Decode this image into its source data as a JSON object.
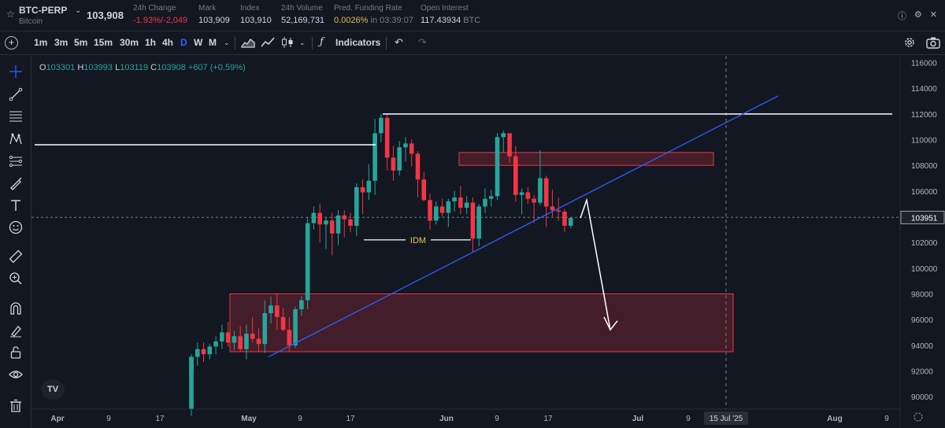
{
  "header": {
    "symbol": "BTC-PERP",
    "subtitle": "Bitcoin",
    "last_price": "103,908",
    "stats": [
      {
        "label": "24h Change",
        "value": "-1.93%/-2,049",
        "tone": "red"
      },
      {
        "label": "Mark",
        "value": "103,909",
        "tone": "normal"
      },
      {
        "label": "Index",
        "value": "103,910",
        "tone": "normal"
      },
      {
        "label": "24h Volume",
        "value": "52,169,731",
        "tone": "normal"
      },
      {
        "label": "Pred. Funding Rate",
        "value": "0.0026%",
        "value_suffix": "in 03:39:07",
        "tone": "yellow"
      },
      {
        "label": "Open Interest",
        "value": "117.43934",
        "value_suffix": "BTC",
        "tone": "normal"
      }
    ]
  },
  "toolbar": {
    "timeframes": [
      "1m",
      "3m",
      "5m",
      "15m",
      "30m",
      "1h",
      "4h",
      "D",
      "W",
      "M"
    ],
    "active_timeframe": "D",
    "indicators_label": "Indicators"
  },
  "legend": {
    "open_label": "O",
    "open": "103301",
    "high_label": "H",
    "high": "103993",
    "low_label": "L",
    "low": "103119",
    "close_label": "C",
    "close": "103908",
    "change": "+607 (+0.59%)"
  },
  "chart_data": {
    "type": "candlestick",
    "y_axis_ticks": [
      116000,
      114000,
      112000,
      110000,
      108000,
      106000,
      104000,
      102000,
      100000,
      98000,
      96000,
      94000,
      92000,
      90000
    ],
    "ylim": [
      88500,
      116800
    ],
    "x_axis_labels": [
      "Apr",
      "9",
      "17",
      "May",
      "9",
      "17",
      "Jun",
      "9",
      "17",
      "Jul",
      "9",
      "15 Jul '25",
      "Aug",
      "9"
    ],
    "current_price_label": "103951",
    "annotations": {
      "idm_label": "IDM"
    },
    "colors": {
      "up": "#26a69a",
      "down": "#f23645",
      "trendline": "#2962ff",
      "zone": "#f23645"
    },
    "candles": [
      [
        91800,
        93300,
        88500,
        93100
      ],
      [
        93100,
        94200,
        92400,
        93700
      ],
      [
        93700,
        94200,
        92700,
        93300
      ],
      [
        93300,
        94100,
        92900,
        93900
      ],
      [
        93900,
        94700,
        93300,
        94300
      ],
      [
        94300,
        95600,
        93700,
        95000
      ],
      [
        95000,
        95800,
        93900,
        94200
      ],
      [
        94200,
        95100,
        93600,
        94700
      ],
      [
        94700,
        95500,
        93500,
        93700
      ],
      [
        93700,
        95600,
        92900,
        94900
      ],
      [
        94900,
        96200,
        94200,
        94500
      ],
      [
        94500,
        95300,
        93500,
        94100
      ],
      [
        94100,
        97500,
        93400,
        96500
      ],
      [
        96500,
        97800,
        95700,
        97100
      ],
      [
        97100,
        98000,
        95200,
        96200
      ],
      [
        96200,
        96900,
        95100,
        95200
      ],
      [
        95200,
        96200,
        93500,
        94000
      ],
      [
        94000,
        97000,
        93800,
        96800
      ],
      [
        96800,
        97800,
        96300,
        97500
      ],
      [
        97500,
        104000,
        96800,
        103500
      ],
      [
        103500,
        104800,
        103000,
        104300
      ],
      [
        104300,
        105000,
        102000,
        103400
      ],
      [
        103400,
        104000,
        101500,
        103700
      ],
      [
        103700,
        104300,
        101000,
        102700
      ],
      [
        102700,
        104500,
        101800,
        104100
      ],
      [
        104100,
        104500,
        102400,
        103800
      ],
      [
        103800,
        104300,
        102800,
        103300
      ],
      [
        103300,
        106600,
        102500,
        106300
      ],
      [
        106300,
        106900,
        104200,
        105900
      ],
      [
        105900,
        108100,
        105300,
        106800
      ],
      [
        106800,
        111600,
        105700,
        110500
      ],
      [
        110500,
        112000,
        109800,
        111700
      ],
      [
        111700,
        112000,
        107600,
        108600
      ],
      [
        108600,
        109500,
        106800,
        107600
      ],
      [
        107600,
        109900,
        107200,
        109400
      ],
      [
        109400,
        110200,
        108300,
        109700
      ],
      [
        109700,
        110000,
        107900,
        108900
      ],
      [
        108900,
        109100,
        105500,
        106900
      ],
      [
        106900,
        107500,
        105200,
        105300
      ],
      [
        105300,
        105800,
        103000,
        103700
      ],
      [
        103700,
        105200,
        103400,
        104800
      ],
      [
        104800,
        105400,
        104000,
        104300
      ],
      [
        104300,
        105400,
        103200,
        105200
      ],
      [
        105200,
        106000,
        104400,
        105500
      ],
      [
        105500,
        106400,
        104200,
        104700
      ],
      [
        104700,
        105600,
        104200,
        105100
      ],
      [
        105100,
        105500,
        101200,
        102300
      ],
      [
        102300,
        105000,
        101700,
        104800
      ],
      [
        104800,
        106200,
        104300,
        105400
      ],
      [
        105400,
        106100,
        104800,
        105600
      ],
      [
        105600,
        110500,
        105300,
        110200
      ],
      [
        110200,
        110700,
        109000,
        110500
      ],
      [
        110500,
        110500,
        108200,
        108700
      ],
      [
        108700,
        109500,
        105200,
        105700
      ],
      [
        105700,
        106200,
        104200,
        105900
      ],
      [
        105900,
        106300,
        105000,
        105400
      ],
      [
        105400,
        105700,
        103500,
        105100
      ],
      [
        105100,
        109200,
        104900,
        107000
      ],
      [
        107000,
        107200,
        103200,
        104800
      ],
      [
        104800,
        106100,
        104000,
        104500
      ],
      [
        104500,
        105500,
        103700,
        104400
      ],
      [
        104400,
        104600,
        102800,
        103300
      ],
      [
        103300,
        104000,
        103100,
        103900
      ]
    ]
  }
}
